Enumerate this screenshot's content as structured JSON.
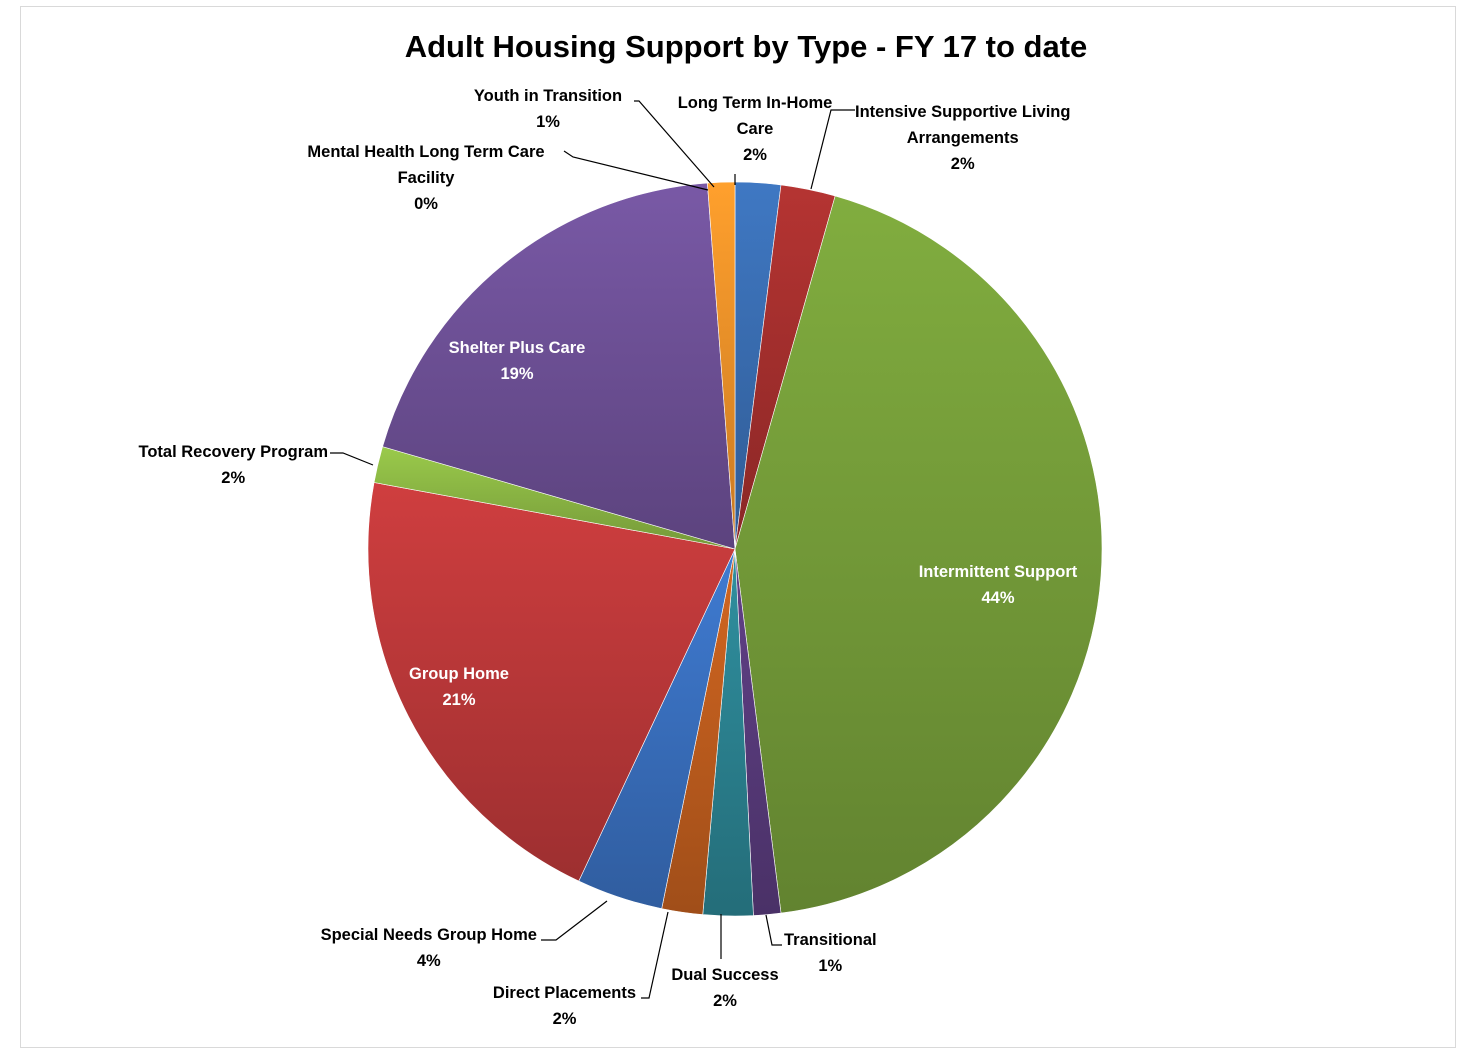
{
  "chart_data": {
    "type": "pie",
    "title": "Adult Housing Support by Type - FY 17 to date",
    "slices": [
      {
        "name": "Long Term In-Home Care",
        "name_lines": [
          "Long Term In-Home",
          "Care"
        ],
        "percent_label": "2%",
        "value": 2.0,
        "color": "#3a6fb5",
        "label_position": "outside"
      },
      {
        "name": "Intensive Supportive Living Arrangements",
        "name_lines": [
          "Intensive Supportive Living",
          "Arrangements"
        ],
        "percent_label": "2%",
        "value": 2.4,
        "color": "#a8302e",
        "label_position": "outside"
      },
      {
        "name": "Intermittent Support",
        "name_lines": [
          "Intermittent Support"
        ],
        "percent_label": "44%",
        "value": 43.6,
        "color": "#77a03a",
        "label_position": "inside"
      },
      {
        "name": "Transitional",
        "name_lines": [
          "Transitional"
        ],
        "percent_label": "1%",
        "value": 1.2,
        "color": "#5a3c7e",
        "label_position": "outside"
      },
      {
        "name": "Dual Success",
        "name_lines": [
          "Dual Success"
        ],
        "percent_label": "2%",
        "value": 2.2,
        "color": "#2c8594",
        "label_position": "outside"
      },
      {
        "name": "Direct Placements",
        "name_lines": [
          "Direct Placements"
        ],
        "percent_label": "2%",
        "value": 1.8,
        "color": "#c35f1f",
        "label_position": "outside"
      },
      {
        "name": "Special Needs Group Home",
        "name_lines": [
          "Special Needs Group Home"
        ],
        "percent_label": "4%",
        "value": 3.8,
        "color": "#3a72c2",
        "label_position": "outside"
      },
      {
        "name": "Group Home",
        "name_lines": [
          "Group Home"
        ],
        "percent_label": "21%",
        "value": 20.9,
        "color": "#c0393a",
        "label_position": "inside"
      },
      {
        "name": "Total Recovery Program",
        "name_lines": [
          "Total Recovery Program"
        ],
        "percent_label": "2%",
        "value": 1.6,
        "color": "#8fbb45",
        "label_position": "outside"
      },
      {
        "name": "Shelter Plus Care",
        "name_lines": [
          "Shelter Plus Care"
        ],
        "percent_label": "19%",
        "value": 19.3,
        "color": "#70529a",
        "label_position": "inside"
      },
      {
        "name": "Mental Health Long Term Care Facility",
        "name_lines": [
          "Mental Health Long Term Care",
          "Facility"
        ],
        "percent_label": "0%",
        "value": 0.0,
        "color": "#4f7fc0",
        "label_position": "outside"
      },
      {
        "name": "Youth in Transition",
        "name_lines": [
          "Youth in Transition"
        ],
        "percent_label": "1%",
        "value": 1.2,
        "color": "#f4942a",
        "label_position": "outside"
      }
    ],
    "start_angle_deg": 0,
    "direction": "clockwise",
    "legend": "none",
    "data_labels": "category name and percentage"
  }
}
